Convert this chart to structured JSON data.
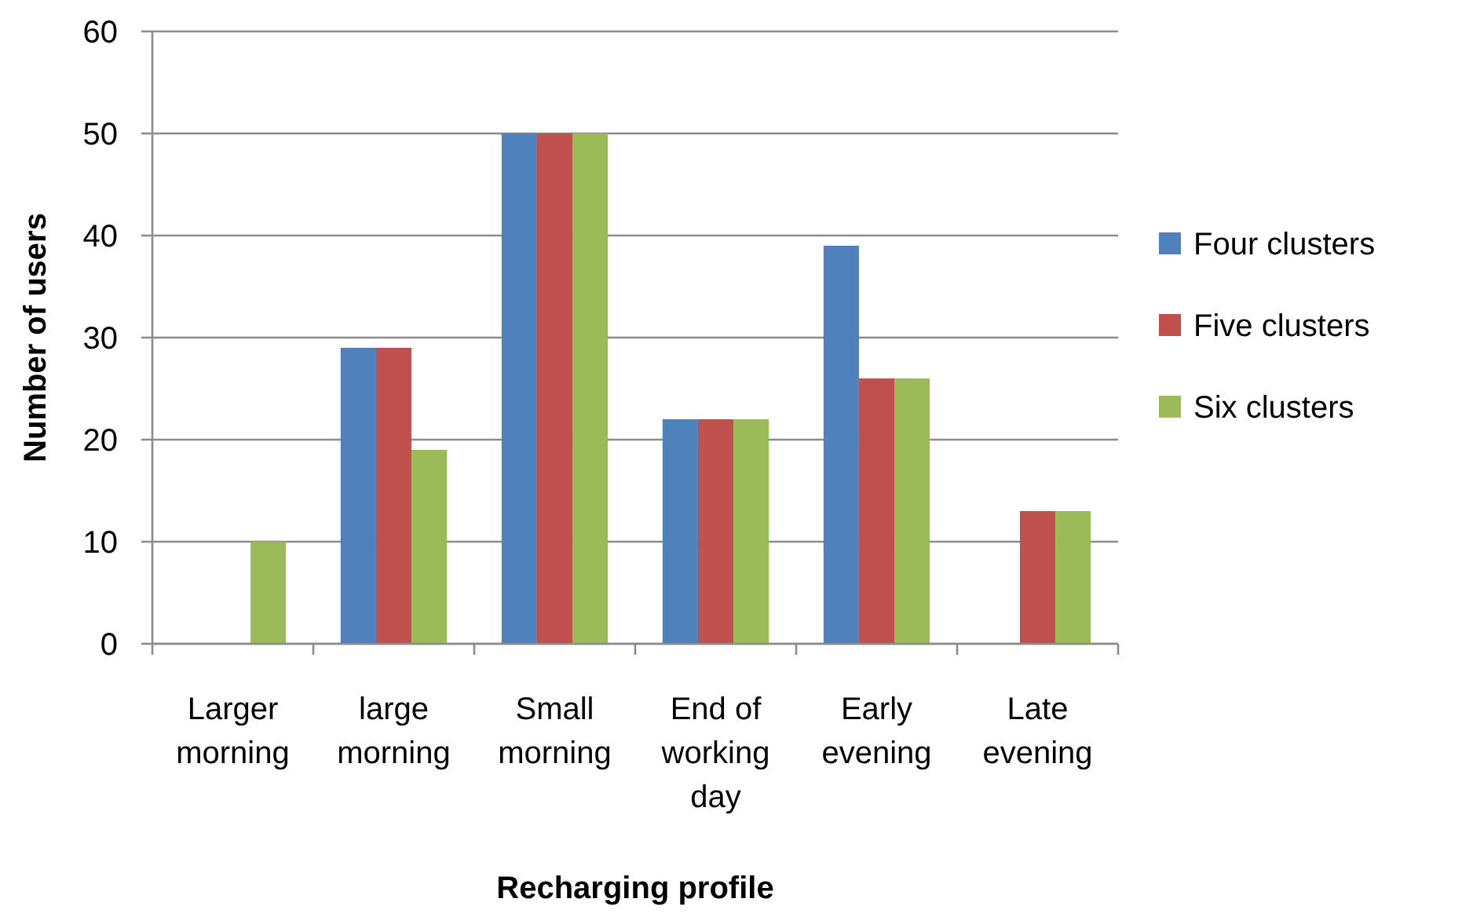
{
  "chart_data": {
    "type": "bar",
    "xlabel": "Recharging profile",
    "ylabel": "Number of users",
    "categories": [
      "Larger morning",
      "large morning",
      "Small morning",
      "End of working day",
      "Early evening",
      "Late evening"
    ],
    "series": [
      {
        "name": "Four clusters",
        "color": "#4f81bd",
        "values": [
          0,
          29,
          50,
          22,
          39,
          0
        ]
      },
      {
        "name": "Five clusters",
        "color": "#c0504d",
        "values": [
          0,
          29,
          50,
          22,
          26,
          13
        ]
      },
      {
        "name": "Six clusters",
        "color": "#9bbb59",
        "values": [
          10,
          19,
          50,
          22,
          26,
          13
        ]
      }
    ],
    "ylim": [
      0,
      60
    ],
    "yticks": [
      0,
      10,
      20,
      30,
      40,
      50,
      60
    ],
    "grid": "y",
    "legend": "right"
  }
}
